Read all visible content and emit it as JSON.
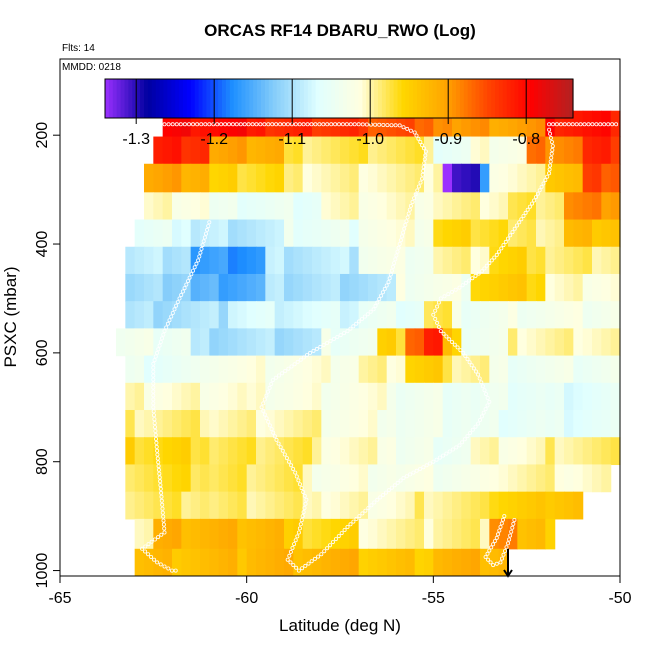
{
  "chart_data": {
    "type": "heatmap",
    "title": "ORCAS RF14 DBARU_RWO (Log)",
    "flts_label": "Flts: 14",
    "mmdd_label": "MMDD: 0218",
    "xlabel": "Latitude (deg N)",
    "ylabel": "PSXC (mbar)",
    "xlim": [
      -65,
      -50
    ],
    "ylim": [
      1010,
      60
    ],
    "y_reversed": true,
    "x_ticks": [
      -65,
      -60,
      -55,
      -50
    ],
    "x_tick_labels": [
      "-65",
      "-60",
      "-55",
      "-50"
    ],
    "y_ticks": [
      200,
      400,
      600,
      800,
      1000
    ],
    "y_tick_labels": [
      "200",
      "400",
      "600",
      "800",
      "1000"
    ],
    "colorbar": {
      "range": [
        -1.34,
        -0.74
      ],
      "ticks": [
        -1.3,
        -1.2,
        -1.1,
        -1.0,
        -0.9,
        -0.8
      ],
      "tick_labels": [
        "-1.3",
        "-1.2",
        "-1.1",
        "-1.0",
        "-0.9",
        "-0.8"
      ],
      "color_stops": [
        "#9b30ff",
        "#0000a0",
        "#0000ff",
        "#1e90ff",
        "#87cefa",
        "#e0ffff",
        "#ffffe0",
        "#ffd700",
        "#ffa500",
        "#ff4500",
        "#ff0000",
        "#b22222"
      ]
    },
    "cell_width_deg": 0.25,
    "rows": [
      {
        "p": 180,
        "x0": -62.25,
        "x1": -50.0,
        "vals": [
          [
            -62.25,
            -59.5,
            -0.77
          ],
          [
            -59.5,
            -57,
            -0.8
          ],
          [
            -57,
            -55.5,
            -0.82
          ],
          [
            -55.5,
            -54.5,
            -0.85
          ],
          [
            -54.5,
            -52,
            -0.87
          ],
          [
            -52,
            -50,
            -0.78
          ]
        ]
      },
      {
        "p": 225,
        "x0": -62.5,
        "x1": -50.0,
        "vals": [
          [
            -62.5,
            -61,
            -0.79
          ],
          [
            -61,
            -59,
            -0.88
          ],
          [
            -59,
            -55,
            -0.95
          ],
          [
            -55,
            -54,
            -1.02
          ],
          [
            -54,
            -52.5,
            -0.99
          ],
          [
            -52.5,
            -51,
            -0.85
          ],
          [
            -51,
            -50,
            -0.8
          ]
        ]
      },
      {
        "p": 280,
        "x0": -62.75,
        "x1": -50.0,
        "vals": [
          [
            -62.75,
            -61,
            -0.88
          ],
          [
            -61,
            -59,
            -0.93
          ],
          [
            -59,
            -55,
            -0.97
          ],
          [
            -55,
            -54.75,
            -0.96
          ],
          [
            -54.75,
            -54.5,
            -1.33
          ],
          [
            -54.5,
            -53.75,
            -1.28
          ],
          [
            -53.75,
            -53.5,
            -1.12
          ],
          [
            -53.5,
            -52,
            -0.98
          ],
          [
            -52,
            -51,
            -0.9
          ],
          [
            -51,
            -50,
            -0.82
          ]
        ]
      },
      {
        "p": 330,
        "x0": -62.75,
        "x1": -50.0,
        "vals": [
          [
            -62.75,
            -61,
            -0.98
          ],
          [
            -61,
            -58,
            -1.02
          ],
          [
            -58,
            -55,
            -0.98
          ],
          [
            -55,
            -53,
            -0.97
          ],
          [
            -53,
            -51.5,
            -0.95
          ],
          [
            -51.5,
            -50,
            -0.86
          ]
        ]
      },
      {
        "p": 380,
        "x0": -63.0,
        "x1": -50.0,
        "vals": [
          [
            -63,
            -61.5,
            -1.03
          ],
          [
            -61.5,
            -59,
            -1.06
          ],
          [
            -59,
            -57,
            -1.02
          ],
          [
            -57,
            -55,
            -0.99
          ],
          [
            -55,
            -53,
            -0.93
          ],
          [
            -53,
            -51.5,
            -0.96
          ],
          [
            -51.5,
            -50,
            -0.9
          ]
        ]
      },
      {
        "p": 430,
        "x0": -63.25,
        "x1": -50.0,
        "vals": [
          [
            -63.25,
            -61.5,
            -1.06
          ],
          [
            -61.5,
            -59.5,
            -1.14
          ],
          [
            -59.5,
            -57,
            -1.06
          ],
          [
            -57,
            -55,
            -1.0
          ],
          [
            -55,
            -53.5,
            -0.97
          ],
          [
            -53.5,
            -52,
            -0.93
          ],
          [
            -52,
            -50,
            -0.96
          ]
        ]
      },
      {
        "p": 480,
        "x0": -63.25,
        "x1": -50.0,
        "vals": [
          [
            -63.25,
            -61.5,
            -1.08
          ],
          [
            -61.5,
            -59.5,
            -1.12
          ],
          [
            -59.5,
            -56,
            -1.07
          ],
          [
            -56,
            -54,
            -1.0
          ],
          [
            -54,
            -52,
            -0.92
          ],
          [
            -52,
            -50,
            -0.98
          ]
        ]
      },
      {
        "p": 530,
        "x0": -63.25,
        "x1": -50.0,
        "vals": [
          [
            -63.25,
            -60.5,
            -1.07
          ],
          [
            -60.5,
            -57,
            -1.04
          ],
          [
            -57,
            -55.25,
            -1.02
          ],
          [
            -55.25,
            -54.5,
            -0.95
          ],
          [
            -54.5,
            -53,
            -1.01
          ],
          [
            -53,
            -50,
            -1.0
          ]
        ]
      },
      {
        "p": 580,
        "x0": -63.5,
        "x1": -50.0,
        "vals": [
          [
            -63.5,
            -61.5,
            -1.01
          ],
          [
            -61.5,
            -58,
            -1.07
          ],
          [
            -58,
            -56.5,
            -1.01
          ],
          [
            -56.5,
            -55.75,
            -0.93
          ],
          [
            -55.75,
            -55.25,
            -0.83
          ],
          [
            -55.25,
            -54.75,
            -0.79
          ],
          [
            -54.75,
            -54.25,
            -0.91
          ],
          [
            -54.25,
            -53,
            -1.01
          ],
          [
            -53,
            -50,
            -0.97
          ]
        ]
      },
      {
        "p": 630,
        "x0": -63.25,
        "x1": -50.0,
        "vals": [
          [
            -63.25,
            -61,
            -1.02
          ],
          [
            -61,
            -57,
            -0.99
          ],
          [
            -57,
            -55.75,
            -0.97
          ],
          [
            -55.75,
            -54.75,
            -0.92
          ],
          [
            -54.75,
            -53.5,
            -0.96
          ],
          [
            -53.5,
            -50,
            -1.01
          ]
        ]
      },
      {
        "p": 680,
        "x0": -63.25,
        "x1": -50.0,
        "vals": [
          [
            -63.25,
            -60,
            -0.98
          ],
          [
            -60,
            -56,
            -0.99
          ],
          [
            -56,
            -54,
            -1.01
          ],
          [
            -54,
            -52,
            -1.02
          ],
          [
            -52,
            -50,
            -1.03
          ]
        ]
      },
      {
        "p": 730,
        "x0": -63.25,
        "x1": -50.0,
        "vals": [
          [
            -63.25,
            -61,
            -0.96
          ],
          [
            -61,
            -58,
            -0.97
          ],
          [
            -58,
            -56,
            -0.99
          ],
          [
            -56,
            -54,
            -1.01
          ],
          [
            -54,
            -52,
            -1.02
          ],
          [
            -52,
            -50,
            -1.03
          ]
        ]
      },
      {
        "p": 780,
        "x0": -63.25,
        "x1": -50.0,
        "vals": [
          [
            -63.25,
            -61,
            -0.93
          ],
          [
            -61,
            -58,
            -0.95
          ],
          [
            -58,
            -56,
            -0.98
          ],
          [
            -56,
            -54,
            -1.01
          ],
          [
            -54,
            -52,
            -0.98
          ],
          [
            -52,
            -50,
            -0.96
          ]
        ]
      },
      {
        "p": 830,
        "x0": -63.25,
        "x1": -50.25,
        "vals": [
          [
            -63.25,
            -61,
            -0.94
          ],
          [
            -61,
            -58.5,
            -0.95
          ],
          [
            -58.5,
            -56,
            -0.99
          ],
          [
            -56,
            -53.5,
            -1.0
          ],
          [
            -53.5,
            -51.5,
            -0.97
          ],
          [
            -51.5,
            -50.25,
            -0.98
          ]
        ]
      },
      {
        "p": 880,
        "x0": -63.25,
        "x1": -51.0,
        "vals": [
          [
            -63.25,
            -61,
            -0.95
          ],
          [
            -61,
            -58,
            -0.96
          ],
          [
            -58,
            -55.5,
            -0.98
          ],
          [
            -55.5,
            -53.5,
            -0.96
          ],
          [
            -53.5,
            -52,
            -0.92
          ],
          [
            -52,
            -51,
            -0.9
          ]
        ]
      },
      {
        "p": 930,
        "x0": -63.0,
        "x1": -51.75,
        "vals": [
          [
            -63,
            -62.5,
            -0.97
          ],
          [
            -62.5,
            -59,
            -0.89
          ],
          [
            -59,
            -57,
            -0.93
          ],
          [
            -57,
            -55,
            -0.97
          ],
          [
            -55,
            -53.5,
            -0.96
          ],
          [
            -53.5,
            -52.75,
            -0.85
          ],
          [
            -52.75,
            -51.75,
            -0.91
          ]
        ]
      },
      {
        "p": 990,
        "x0": -63.0,
        "x1": -53.0,
        "vals": [
          [
            -63,
            -60,
            -0.9
          ],
          [
            -60,
            -57,
            -0.89
          ],
          [
            -57,
            -55,
            -0.91
          ],
          [
            -55,
            -53,
            -0.89
          ]
        ]
      }
    ],
    "flight_track": [
      [
        -62.2,
        180
      ],
      [
        -61,
        180
      ],
      [
        -59,
        180
      ],
      [
        -57,
        180
      ],
      [
        -55.9,
        182
      ],
      [
        -55.5,
        195
      ],
      [
        -55.2,
        230
      ],
      [
        -55.3,
        280
      ],
      [
        -55.6,
        330
      ],
      [
        -55.9,
        400
      ],
      [
        -56.2,
        470
      ],
      [
        -56.6,
        520
      ],
      [
        -57.3,
        560
      ],
      [
        -58.3,
        600
      ],
      [
        -59.3,
        650
      ],
      [
        -59.6,
        700
      ],
      [
        -59.2,
        760
      ],
      [
        -58.7,
        820
      ],
      [
        -58.4,
        870
      ],
      [
        -58.6,
        930
      ],
      [
        -58.9,
        980
      ],
      [
        -58.6,
        1000
      ],
      [
        -58.0,
        970
      ],
      [
        -57.3,
        920
      ],
      [
        -56.5,
        870
      ],
      [
        -55.8,
        830
      ],
      [
        -55.0,
        800
      ],
      [
        -54.3,
        770
      ],
      [
        -53.8,
        730
      ],
      [
        -53.5,
        690
      ],
      [
        -53.8,
        640
      ],
      [
        -54.2,
        600
      ],
      [
        -54.8,
        560
      ],
      [
        -55.0,
        530
      ],
      [
        -54.8,
        500
      ],
      [
        -54.3,
        480
      ],
      [
        -53.7,
        450
      ],
      [
        -53.3,
        420
      ],
      [
        -53.0,
        390
      ],
      [
        -52.7,
        360
      ],
      [
        -52.3,
        320
      ],
      [
        -51.9,
        270
      ],
      [
        -51.8,
        220
      ],
      [
        -51.9,
        190
      ],
      [
        -51.9,
        180
      ],
      [
        -50,
        180
      ]
    ],
    "flight_track_2": [
      [
        -61,
        360
      ],
      [
        -61.3,
        430
      ],
      [
        -61.8,
        500
      ],
      [
        -62.2,
        560
      ],
      [
        -62.5,
        620
      ],
      [
        -62.5,
        700
      ],
      [
        -62.4,
        780
      ],
      [
        -62.3,
        850
      ],
      [
        -62.2,
        930
      ],
      [
        -62.8,
        960
      ],
      [
        -62.4,
        985
      ],
      [
        -62,
        1000
      ],
      [
        -61.8,
        1000
      ]
    ],
    "flight_track_3": [
      [
        -53.1,
        900
      ],
      [
        -53.3,
        940
      ],
      [
        -53.6,
        975
      ],
      [
        -53.4,
        990
      ],
      [
        -53.2,
        985
      ],
      [
        -53.0,
        950
      ],
      [
        -52.8,
        900
      ]
    ],
    "marker": {
      "x": -53.0,
      "p_from": 960,
      "p_to": 1010
    }
  }
}
